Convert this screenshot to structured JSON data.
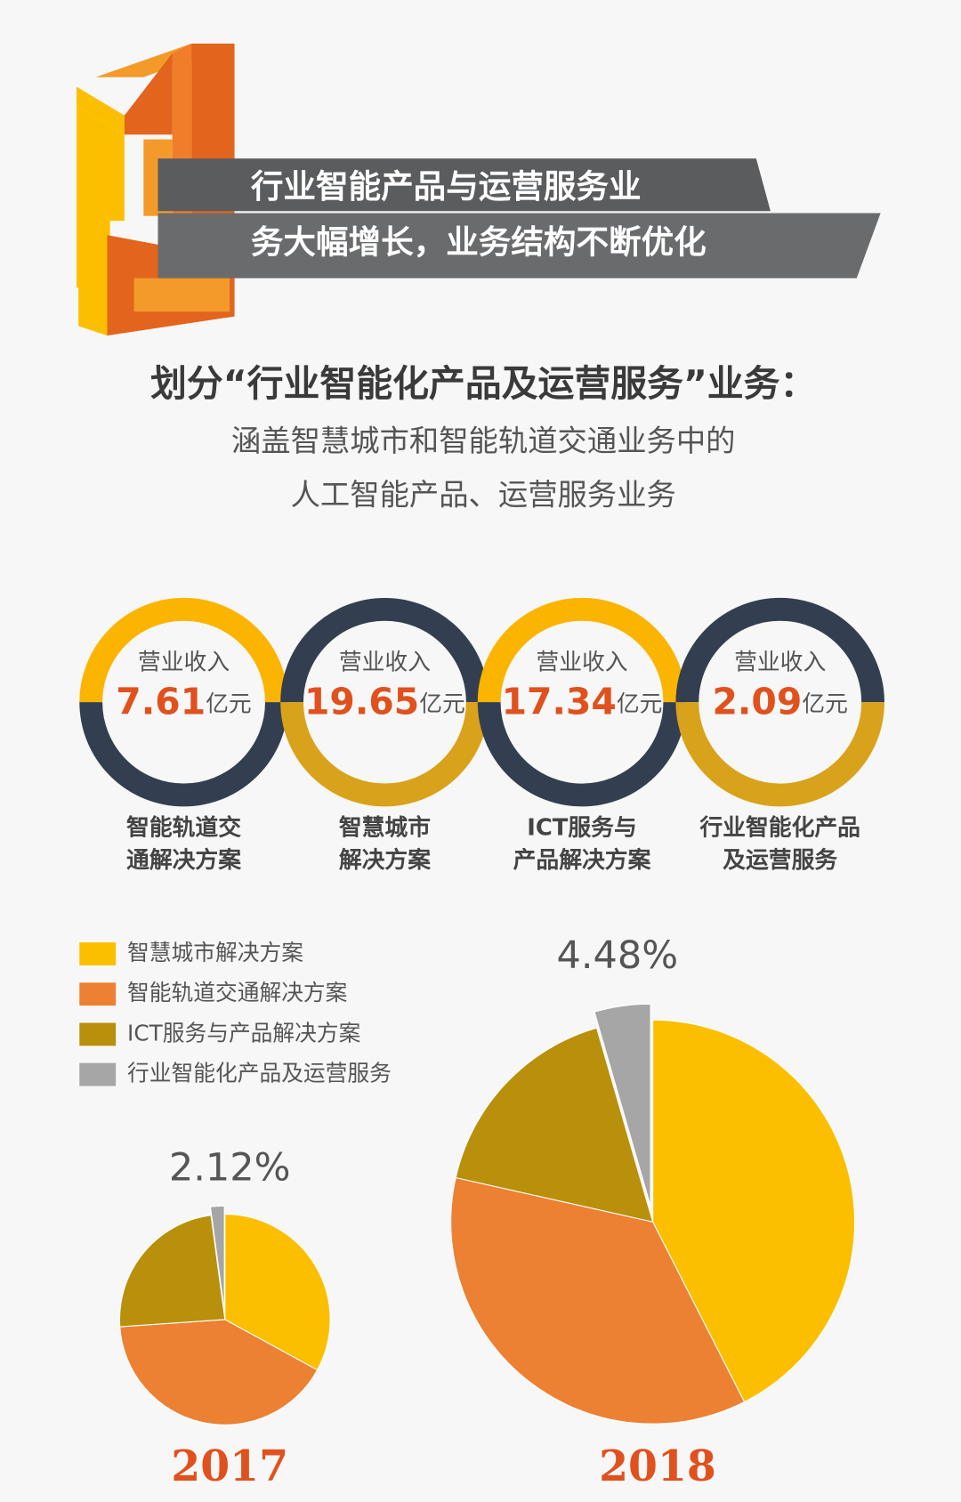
{
  "header": {
    "title_lines": [
      "行业智能产品与运营服务业",
      "务大幅增长，业务结构不断优化"
    ]
  },
  "intro": {
    "title": "划分“行业智能化产品及运营服务”业务：",
    "lines": [
      "涵盖智慧城市和智能轨道交通业务中的",
      "人工智能产品、运营服务业务"
    ]
  },
  "rings": [
    {
      "label": "营业收入",
      "value": "7.61",
      "unit": "亿元",
      "name_lines": [
        "智能轨道交",
        "通解决方案"
      ]
    },
    {
      "label": "营业收入",
      "value": "19.65",
      "unit": "亿元",
      "name_lines": [
        "智慧城市",
        "解决方案"
      ]
    },
    {
      "label": "营业收入",
      "value": "17.34",
      "unit": "亿元",
      "name_lines": [
        "ICT服务与",
        "产品解决方案"
      ]
    },
    {
      "label": "营业收入",
      "value": "2.09",
      "unit": "亿元",
      "name_lines": [
        "行业智能化产品",
        "及运营服务"
      ]
    }
  ],
  "chart_data": [
    {
      "type": "pie",
      "title": "2017",
      "categories": [
        "智慧城市解决方案",
        "智能轨道交通解决方案",
        "ICT服务与产品解决方案",
        "行业智能化产品及运营服务"
      ],
      "values": [
        33,
        41,
        24,
        2.12
      ],
      "value_labels": [
        null,
        null,
        null,
        "2.12%"
      ],
      "colors": [
        "#fbbf00",
        "#ec8033",
        "#b8900b",
        "#a6a6a6"
      ]
    },
    {
      "type": "pie",
      "title": "2018",
      "categories": [
        "智慧城市解决方案",
        "智能轨道交通解决方案",
        "ICT服务与产品解决方案",
        "行业智能化产品及运营服务"
      ],
      "values": [
        42.5,
        36,
        17,
        4.48
      ],
      "value_labels": [
        null,
        null,
        null,
        "4.48%"
      ],
      "colors": [
        "#fbbf00",
        "#ec8033",
        "#b8900b",
        "#a6a6a6"
      ]
    }
  ]
}
